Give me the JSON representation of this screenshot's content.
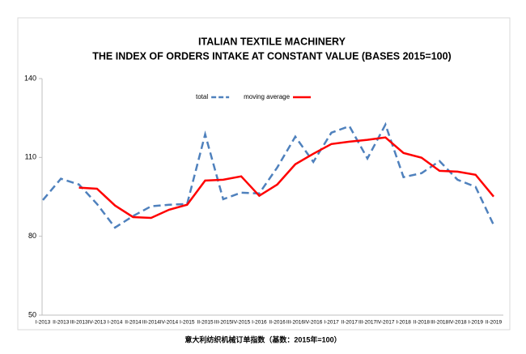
{
  "chart_data": {
    "type": "line",
    "title": "ITALIAN TEXTILE MACHINERY",
    "subtitle": "THE INDEX OF ORDERS INTAKE AT CONSTANT VALUE (BASES 2015=100)",
    "caption": "意大利纺织机械订单指数（基数：2015年=100）",
    "categories": [
      "I-2013",
      "II-2013",
      "III-2013",
      "IV-2013",
      "I-2014",
      "II-2014",
      "III-2014",
      "IV-2014",
      "I-2015",
      "II-2015",
      "III-2015",
      "IV-2015",
      "I-2016",
      "II-2016",
      "III-2016",
      "IV-2016",
      "I-2017",
      "II-2017",
      "III-2017",
      "IV-2017",
      "I-2018",
      "II-2018",
      "III-2018",
      "IV-2018",
      "I-2019",
      "II-2019"
    ],
    "series": [
      {
        "name": "total",
        "color": "#4f81bd",
        "dashed": true,
        "values": [
          93.8,
          101.9,
          99.7,
          92.3,
          83.3,
          87.7,
          91.4,
          92,
          92.3,
          118.8,
          94.1,
          96.6,
          96.3,
          106.2,
          117.9,
          108.3,
          119.4,
          121.9,
          109.6,
          122.5,
          102.5,
          104,
          108.6,
          101.5,
          98.8,
          84.3
        ]
      },
      {
        "name": "moving average",
        "color": "#ff0000",
        "dashed": false,
        "values": [
          null,
          null,
          98.5,
          98.1,
          91.7,
          87.3,
          87,
          90.1,
          92,
          101.2,
          101.5,
          102.8,
          95.4,
          99.7,
          107.4,
          111.4,
          115.1,
          116,
          116.7,
          117.6,
          111.7,
          109.9,
          104.9,
          104.6,
          103.4,
          95.1
        ]
      }
    ],
    "ylim": [
      50,
      140
    ],
    "yticks": [
      50,
      80,
      110,
      140
    ],
    "grid": false,
    "legend": "top"
  }
}
